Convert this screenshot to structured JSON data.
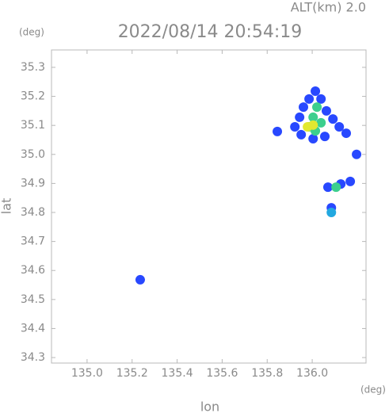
{
  "chart_data": {
    "type": "scatter",
    "title": "2022/08/14 20:54:19",
    "subtitle": "ALT(km) 2.0",
    "x_unit": "(deg)",
    "y_unit": "(deg)",
    "x_label": "lon",
    "y_label": "lat",
    "x": [
      136.014,
      135.986,
      136.039,
      135.961,
      136.063,
      135.944,
      136.092,
      135.923,
      136.12,
      135.951,
      136.056,
      136.004,
      136.151,
      135.845,
      136.197,
      136.127,
      136.169,
      136.07,
      136.085,
      135.236,
      136.021,
      136.004,
      136.039,
      135.986,
      136.014,
      136.106,
      136.085,
      135.979,
      136.004
    ],
    "values": [
      35.218,
      35.191,
      35.191,
      35.163,
      35.15,
      35.128,
      35.122,
      35.095,
      35.095,
      35.068,
      35.062,
      35.054,
      35.073,
      35.079,
      35.0,
      34.898,
      34.907,
      34.887,
      34.816,
      34.568,
      35.163,
      35.128,
      35.109,
      35.095,
      35.081,
      34.887,
      34.8,
      35.095,
      35.101
    ],
    "colors": [
      "#2848ff",
      "#2848ff",
      "#2848ff",
      "#2848ff",
      "#2848ff",
      "#2848ff",
      "#2848ff",
      "#2848ff",
      "#2848ff",
      "#2848ff",
      "#2848ff",
      "#2848ff",
      "#2848ff",
      "#2848ff",
      "#2848ff",
      "#2848ff",
      "#2848ff",
      "#2848ff",
      "#2848ff",
      "#2848ff",
      "#3ccf8e",
      "#3ccf8e",
      "#3ccf8e",
      "#3ccf8e",
      "#3ccf8e",
      "#3ccf8e",
      "#22a8e0",
      "#e2e830",
      "#e2e830"
    ],
    "xlim": [
      134.842,
      136.239
    ],
    "ylim": [
      34.281,
      35.36
    ],
    "xticks": [
      {
        "value": 135.0,
        "label": "135.0"
      },
      135.2,
      135.4,
      135.6,
      135.8,
      {
        "value": 136.0,
        "label": "136.0"
      }
    ],
    "yticks": [
      34.3,
      34.4,
      34.5,
      34.6,
      34.7,
      34.8,
      34.9,
      {
        "value": 35.0,
        "label": "35.0"
      },
      35.1,
      35.2,
      35.3
    ]
  }
}
